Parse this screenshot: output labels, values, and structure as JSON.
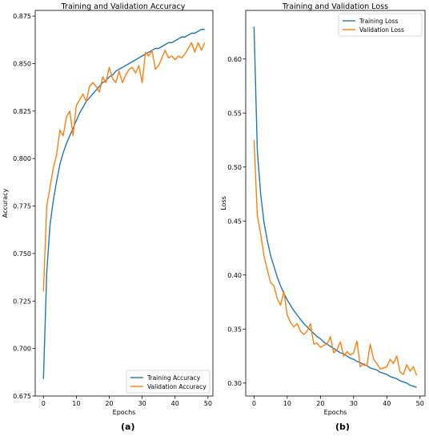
{
  "figure_labels": [
    "(a)",
    "(b)"
  ],
  "chart_data": [
    {
      "type": "line",
      "title": "Training and Validation Accuracy",
      "xlabel": "Epochs",
      "ylabel": "Accuracy",
      "xlim": [
        -2.5,
        51.5
      ],
      "ylim": [
        0.675,
        0.878
      ],
      "xticks": [
        0,
        10,
        20,
        30,
        40,
        50
      ],
      "yticks": [
        0.675,
        0.7,
        0.725,
        0.75,
        0.775,
        0.8,
        0.825,
        0.85,
        0.875
      ],
      "ytick_labels": [
        "0.675",
        "0.700",
        "0.725",
        "0.750",
        "0.775",
        "0.800",
        "0.825",
        "0.850",
        "0.875"
      ],
      "legend_position": "lower-right",
      "grid": false,
      "series": [
        {
          "name": "Training Accuracy",
          "color": "#1f77b4",
          "x": [
            0,
            1,
            2,
            3,
            4,
            5,
            6,
            7,
            8,
            9,
            10,
            11,
            12,
            13,
            14,
            15,
            16,
            17,
            18,
            19,
            20,
            21,
            22,
            23,
            24,
            25,
            26,
            27,
            28,
            29,
            30,
            31,
            32,
            33,
            34,
            35,
            36,
            37,
            38,
            39,
            40,
            41,
            42,
            43,
            44,
            45,
            46,
            47,
            48,
            49
          ],
          "values": [
            0.684,
            0.74,
            0.765,
            0.778,
            0.788,
            0.797,
            0.803,
            0.808,
            0.812,
            0.816,
            0.82,
            0.824,
            0.827,
            0.83,
            0.832,
            0.834,
            0.836,
            0.838,
            0.84,
            0.841,
            0.843,
            0.844,
            0.846,
            0.847,
            0.848,
            0.849,
            0.85,
            0.851,
            0.852,
            0.853,
            0.854,
            0.855,
            0.856,
            0.857,
            0.858,
            0.858,
            0.859,
            0.86,
            0.861,
            0.861,
            0.862,
            0.863,
            0.864,
            0.864,
            0.865,
            0.866,
            0.866,
            0.867,
            0.868,
            0.868
          ]
        },
        {
          "name": "Validation Accuracy",
          "color": "#ff7f0e",
          "x": [
            0,
            1,
            2,
            3,
            4,
            5,
            6,
            7,
            8,
            9,
            10,
            11,
            12,
            13,
            14,
            15,
            16,
            17,
            18,
            19,
            20,
            21,
            22,
            23,
            24,
            25,
            26,
            27,
            28,
            29,
            30,
            31,
            32,
            33,
            34,
            35,
            36,
            37,
            38,
            39,
            40,
            41,
            42,
            43,
            44,
            45,
            46,
            47,
            48,
            49
          ],
          "values": [
            0.73,
            0.775,
            0.785,
            0.795,
            0.802,
            0.815,
            0.812,
            0.822,
            0.825,
            0.812,
            0.828,
            0.831,
            0.834,
            0.83,
            0.838,
            0.84,
            0.838,
            0.835,
            0.843,
            0.84,
            0.848,
            0.842,
            0.84,
            0.846,
            0.84,
            0.844,
            0.847,
            0.848,
            0.845,
            0.849,
            0.84,
            0.856,
            0.854,
            0.857,
            0.847,
            0.849,
            0.853,
            0.857,
            0.853,
            0.854,
            0.852,
            0.854,
            0.853,
            0.855,
            0.858,
            0.861,
            0.856,
            0.861,
            0.857,
            0.861
          ]
        }
      ]
    },
    {
      "type": "line",
      "title": "Training and Validation Loss",
      "xlabel": "Epochs",
      "ylabel": "Loss",
      "xlim": [
        -2.5,
        51.5
      ],
      "ylim": [
        0.288,
        0.645
      ],
      "xticks": [
        0,
        10,
        20,
        30,
        40,
        50
      ],
      "yticks": [
        0.3,
        0.35,
        0.4,
        0.45,
        0.5,
        0.55,
        0.6
      ],
      "ytick_labels": [
        "0.30",
        "0.35",
        "0.40",
        "0.45",
        "0.50",
        "0.55",
        "0.60"
      ],
      "legend_position": "upper-right",
      "grid": false,
      "series": [
        {
          "name": "Training Loss",
          "color": "#1f77b4",
          "x": [
            0,
            1,
            2,
            3,
            4,
            5,
            6,
            7,
            8,
            9,
            10,
            11,
            12,
            13,
            14,
            15,
            16,
            17,
            18,
            19,
            20,
            21,
            22,
            23,
            24,
            25,
            26,
            27,
            28,
            29,
            30,
            31,
            32,
            33,
            34,
            35,
            36,
            37,
            38,
            39,
            40,
            41,
            42,
            43,
            44,
            45,
            46,
            47,
            48,
            49
          ],
          "values": [
            0.63,
            0.515,
            0.475,
            0.449,
            0.432,
            0.418,
            0.408,
            0.398,
            0.39,
            0.383,
            0.377,
            0.372,
            0.367,
            0.363,
            0.359,
            0.355,
            0.352,
            0.349,
            0.346,
            0.343,
            0.341,
            0.338,
            0.336,
            0.334,
            0.332,
            0.33,
            0.328,
            0.327,
            0.325,
            0.323,
            0.322,
            0.32,
            0.319,
            0.317,
            0.316,
            0.314,
            0.313,
            0.312,
            0.31,
            0.309,
            0.308,
            0.306,
            0.305,
            0.304,
            0.302,
            0.301,
            0.3,
            0.298,
            0.297,
            0.296
          ]
        },
        {
          "name": "Validation Loss",
          "color": "#ff7f0e",
          "x": [
            0,
            1,
            2,
            3,
            4,
            5,
            6,
            7,
            8,
            9,
            10,
            11,
            12,
            13,
            14,
            15,
            16,
            17,
            18,
            19,
            20,
            21,
            22,
            23,
            24,
            25,
            26,
            27,
            28,
            29,
            30,
            31,
            32,
            33,
            34,
            35,
            36,
            37,
            38,
            39,
            40,
            41,
            42,
            43,
            44,
            45,
            46,
            47,
            48,
            49
          ],
          "values": [
            0.525,
            0.455,
            0.438,
            0.418,
            0.405,
            0.393,
            0.39,
            0.378,
            0.372,
            0.385,
            0.363,
            0.356,
            0.352,
            0.355,
            0.348,
            0.345,
            0.348,
            0.355,
            0.336,
            0.337,
            0.333,
            0.335,
            0.336,
            0.343,
            0.328,
            0.331,
            0.338,
            0.325,
            0.329,
            0.326,
            0.328,
            0.339,
            0.315,
            0.318,
            0.316,
            0.336,
            0.322,
            0.318,
            0.313,
            0.314,
            0.315,
            0.322,
            0.318,
            0.325,
            0.31,
            0.308,
            0.317,
            0.311,
            0.315,
            0.307
          ]
        }
      ]
    }
  ]
}
